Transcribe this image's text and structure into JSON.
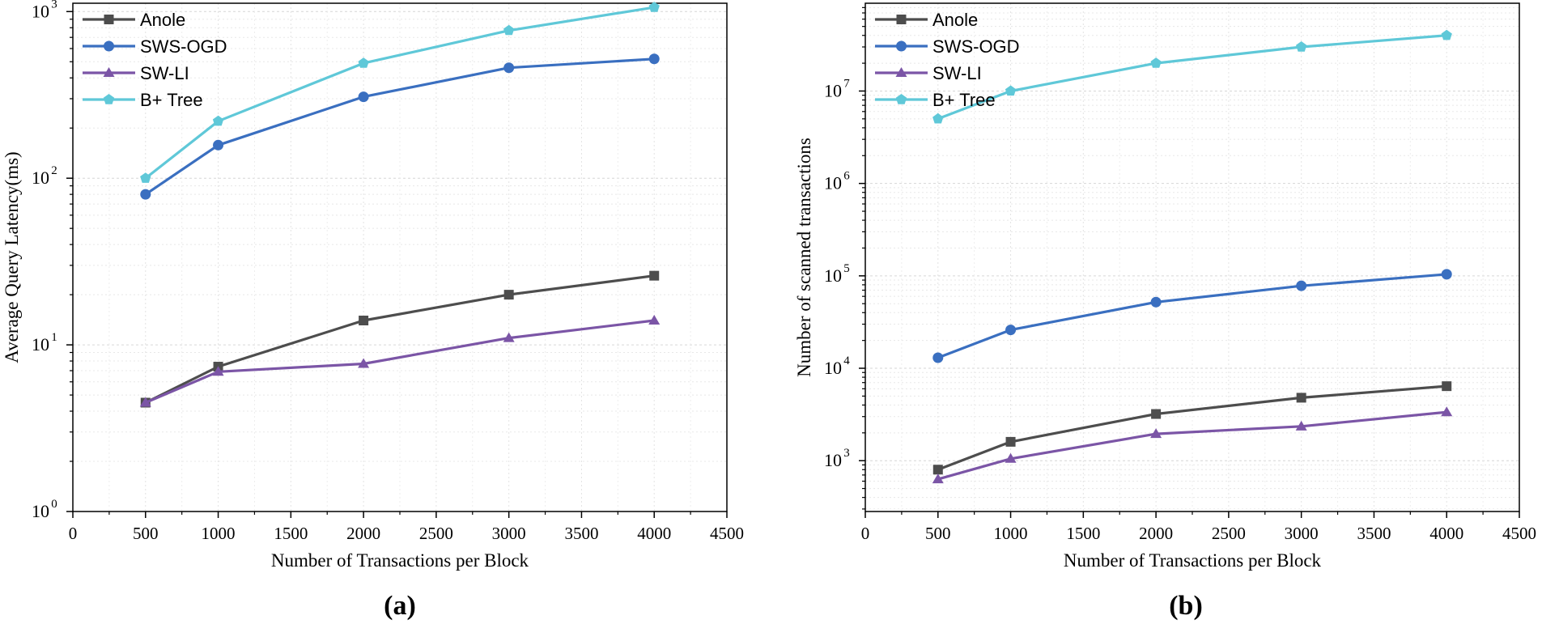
{
  "chart_data": [
    {
      "panel": "(a)",
      "type": "line",
      "xlabel": "Number of Transactions per Block",
      "ylabel": "Average Query Latency(ms)",
      "xscale": "linear",
      "yscale": "log",
      "xlim": [
        0,
        4500
      ],
      "xticks": [
        0,
        500,
        1000,
        1500,
        2000,
        2500,
        3000,
        3500,
        4000,
        4500
      ],
      "ylim_exp": [
        0,
        3.05
      ],
      "yticks_exp": [
        0,
        1,
        2,
        3
      ],
      "grid": true,
      "legend": "top-left",
      "x": [
        500,
        1000,
        2000,
        3000,
        4000
      ],
      "series": [
        {
          "name": "Anole",
          "color": "#4d4d4d",
          "marker": "square",
          "values": [
            4.5,
            7.4,
            14,
            20,
            26
          ]
        },
        {
          "name": "SWS-OGD",
          "color": "#3a6fc0",
          "marker": "circle",
          "values": [
            80,
            158,
            308,
            460,
            520
          ]
        },
        {
          "name": "SW-LI",
          "color": "#7b55a6",
          "marker": "triangle",
          "values": [
            4.5,
            6.9,
            7.7,
            11,
            14
          ]
        },
        {
          "name": "B+ Tree",
          "color": "#5fc8d8",
          "marker": "pentagon",
          "values": [
            100,
            220,
            490,
            770,
            1060
          ]
        }
      ]
    },
    {
      "panel": "(b)",
      "type": "line",
      "xlabel": "Number of Transactions per Block",
      "ylabel": "Number of scanned transactions",
      "xscale": "linear",
      "yscale": "log",
      "xlim": [
        0,
        4500
      ],
      "xticks": [
        0,
        500,
        1000,
        1500,
        2000,
        2500,
        3000,
        3500,
        4000,
        4500
      ],
      "ylim_exp": [
        2.45,
        7.95
      ],
      "yticks_exp": [
        3,
        4,
        5,
        6,
        7
      ],
      "grid": true,
      "legend": "top-left",
      "x": [
        500,
        1000,
        2000,
        3000,
        4000
      ],
      "series": [
        {
          "name": "Anole",
          "color": "#4d4d4d",
          "marker": "square",
          "values": [
            800,
            1600,
            3200,
            4800,
            6400
          ]
        },
        {
          "name": "SWS-OGD",
          "color": "#3a6fc0",
          "marker": "circle",
          "values": [
            13000,
            26000,
            52000,
            78000,
            104000
          ]
        },
        {
          "name": "SW-LI",
          "color": "#7b55a6",
          "marker": "triangle",
          "values": [
            630,
            1050,
            1950,
            2350,
            3350
          ]
        },
        {
          "name": "B+ Tree",
          "color": "#5fc8d8",
          "marker": "pentagon",
          "values": [
            5000000,
            10000000,
            20000000,
            30000000,
            40000000
          ]
        }
      ]
    }
  ]
}
